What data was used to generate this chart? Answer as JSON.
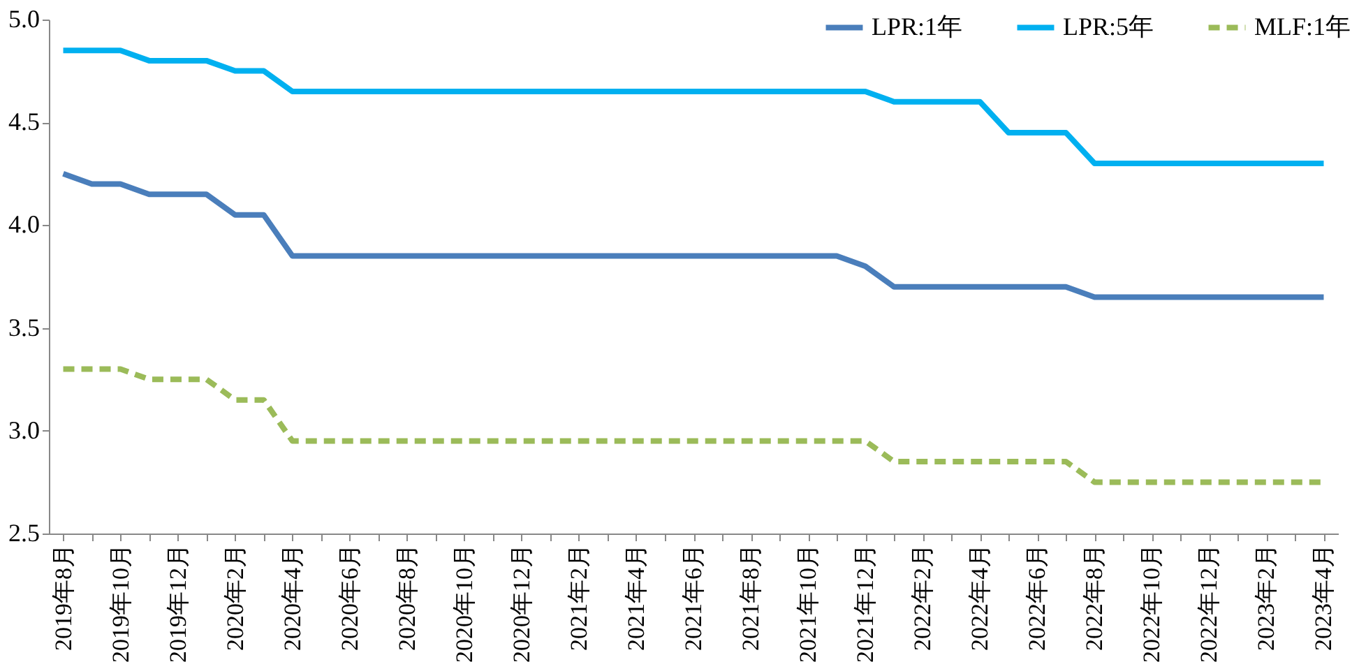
{
  "chart_data": {
    "type": "line",
    "categories": [
      "2019年8月",
      null,
      "2019年10月",
      null,
      "2019年12月",
      null,
      "2020年2月",
      null,
      "2020年4月",
      null,
      "2020年6月",
      null,
      "2020年8月",
      null,
      "2020年10月",
      null,
      "2020年12月",
      null,
      "2021年2月",
      null,
      "2021年4月",
      null,
      "2021年6月",
      null,
      "2021年8月",
      null,
      "2021年10月",
      null,
      "2021年12月",
      null,
      "2022年2月",
      null,
      "2022年4月",
      null,
      "2022年6月",
      null,
      "2022年8月",
      null,
      "2022年10月",
      null,
      "2022年12月",
      null,
      "2023年2月",
      null,
      "2023年4月"
    ],
    "series": [
      {
        "name": "LPR:1年",
        "color": "#4a7ebb",
        "line_style": "solid",
        "values": [
          4.25,
          4.2,
          4.2,
          4.15,
          4.15,
          4.15,
          4.05,
          4.05,
          3.85,
          3.85,
          3.85,
          3.85,
          3.85,
          3.85,
          3.85,
          3.85,
          3.85,
          3.85,
          3.85,
          3.85,
          3.85,
          3.85,
          3.85,
          3.85,
          3.85,
          3.85,
          3.85,
          3.85,
          3.8,
          3.7,
          3.7,
          3.7,
          3.7,
          3.7,
          3.7,
          3.7,
          3.65,
          3.65,
          3.65,
          3.65,
          3.65,
          3.65,
          3.65,
          3.65,
          3.65
        ]
      },
      {
        "name": "LPR:5年",
        "color": "#00b0f0",
        "line_style": "solid",
        "values": [
          4.85,
          4.85,
          4.85,
          4.8,
          4.8,
          4.8,
          4.75,
          4.75,
          4.65,
          4.65,
          4.65,
          4.65,
          4.65,
          4.65,
          4.65,
          4.65,
          4.65,
          4.65,
          4.65,
          4.65,
          4.65,
          4.65,
          4.65,
          4.65,
          4.65,
          4.65,
          4.65,
          4.65,
          4.65,
          4.6,
          4.6,
          4.6,
          4.6,
          4.45,
          4.45,
          4.45,
          4.3,
          4.3,
          4.3,
          4.3,
          4.3,
          4.3,
          4.3,
          4.3,
          4.3
        ]
      },
      {
        "name": "MLF:1年",
        "color": "#9bbb59",
        "line_style": "dashed",
        "values": [
          3.3,
          3.3,
          3.3,
          3.25,
          3.25,
          3.25,
          3.15,
          3.15,
          2.95,
          2.95,
          2.95,
          2.95,
          2.95,
          2.95,
          2.95,
          2.95,
          2.95,
          2.95,
          2.95,
          2.95,
          2.95,
          2.95,
          2.95,
          2.95,
          2.95,
          2.95,
          2.95,
          2.95,
          2.95,
          2.85,
          2.85,
          2.85,
          2.85,
          2.85,
          2.85,
          2.85,
          2.75,
          2.75,
          2.75,
          2.75,
          2.75,
          2.75,
          2.75,
          2.75,
          2.75
        ]
      }
    ],
    "ylim": [
      2.5,
      5.0
    ],
    "yticks": [
      2.5,
      {
        "value": 3,
        "label": "3.0"
      },
      3.5,
      {
        "value": 4,
        "label": "4.0"
      },
      4.5,
      {
        "value": 5,
        "label": "5.0"
      }
    ],
    "grid": false,
    "legend": "top right"
  }
}
